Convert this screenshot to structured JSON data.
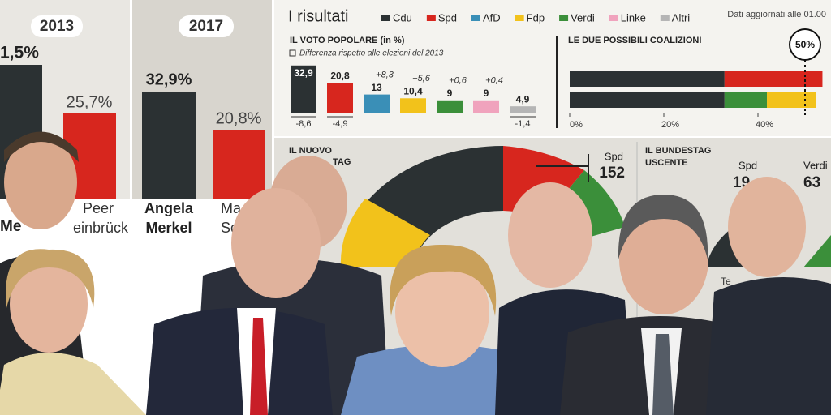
{
  "left_panel": {
    "years": [
      "2013",
      "2017"
    ],
    "values": [
      "1,5%",
      "25,7%",
      "32,9%",
      "20,8%"
    ],
    "names": [
      "Me",
      "Peer",
      "einbrück",
      "Angela",
      "Merkel",
      "Ma",
      "Sc"
    ]
  },
  "results": {
    "title": "I risultati",
    "legend": [
      {
        "name": "Cdu",
        "color": "#2b3133"
      },
      {
        "name": "Spd",
        "color": "#d7261e"
      },
      {
        "name": "AfD",
        "color": "#3a8fb7"
      },
      {
        "name": "Fdp",
        "color": "#f2c21b"
      },
      {
        "name": "Verdi",
        "color": "#3b8f3a"
      },
      {
        "name": "Linke",
        "color": "#f0a3bd"
      },
      {
        "name": "Altri",
        "color": "#b5b5b5"
      }
    ],
    "updated": "Dati aggiornati alle 01.00",
    "popular_vote": {
      "title": "IL VOTO POPOLARE (in %)",
      "note": "Differenza rispetto alle elezioni del 2013",
      "values": [
        {
          "value": 32.9,
          "label": "32,9"
        },
        {
          "value": 20.8,
          "label": "20,8"
        },
        13,
        {
          "value": 10.4,
          "label": "10,4"
        },
        9,
        9,
        {
          "value": 4.9,
          "label": "4,9"
        }
      ],
      "changes": [
        {
          "value": -8.6,
          "label": "-8,6"
        },
        {
          "value": -4.9,
          "label": "-4,9"
        },
        {
          "value": 8.3,
          "label": "+8,3"
        },
        {
          "value": 5.6,
          "label": "+5,6"
        },
        {
          "value": 0.6,
          "label": "+0,6"
        },
        {
          "value": 0.4,
          "label": "+0,4"
        },
        {
          "value": -1.4,
          "label": "-1,4"
        }
      ]
    },
    "coalitions": {
      "title": "LE DUE POSSIBILI COALIZIONI",
      "bars": [
        [
          {
            "value": 32.9,
            "color": "#2b3133"
          },
          {
            "value": 20.8,
            "color": "#d7261e"
          }
        ],
        [
          {
            "value": 32.9,
            "color": "#2b3133"
          },
          {
            "value": 9,
            "color": "#3b8f3a"
          },
          {
            "value": 10.4,
            "color": "#f2c21b"
          }
        ]
      ],
      "ticks": [
        {
          "value": 0,
          "label": "0%"
        },
        {
          "value": 20,
          "label": "20%"
        },
        {
          "value": 40,
          "label": "40%"
        }
      ],
      "threshold": {
        "value": 50,
        "label": "50%"
      }
    }
  },
  "new_bundestag": {
    "title_lines": [
      "IL NUOVO",
      "TAG"
    ],
    "party": "Spd",
    "seats": "152"
  },
  "outgoing_bundestag": {
    "title_lines": [
      "IL BUNDESTAG",
      "USCENTE"
    ],
    "labels": [
      "Spd",
      "19",
      "Verdi",
      "63",
      "Te"
    ]
  }
}
